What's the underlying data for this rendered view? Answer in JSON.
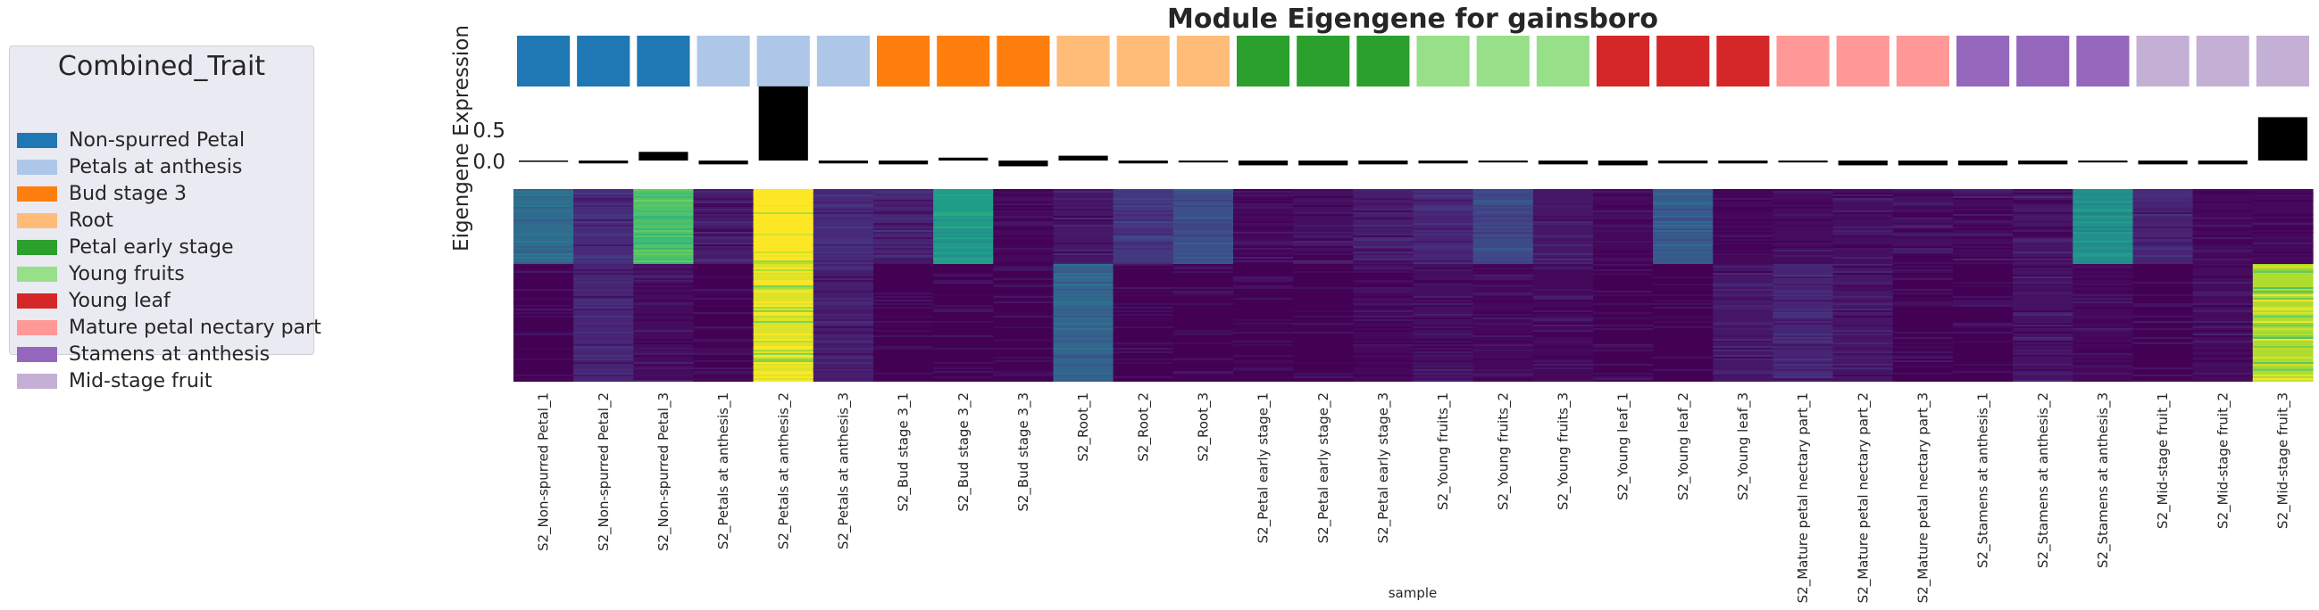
{
  "chart_data": {
    "type": "heatmap",
    "title": "Module Eigengene for gainsboro",
    "xlabel": "sample",
    "ylabel": "Eigengene Expression",
    "yticks": [
      "0.5",
      "0.0"
    ],
    "ylim": [
      -0.1,
      0.8
    ],
    "legend": {
      "title": "Combined_Trait",
      "placement": "left",
      "entries": [
        {
          "label": "Non-spurred Petal",
          "color": "#1f77b4"
        },
        {
          "label": "Petals at anthesis",
          "color": "#aec7e8"
        },
        {
          "label": "Bud stage 3",
          "color": "#ff7f0e"
        },
        {
          "label": "Root",
          "color": "#ffbb78"
        },
        {
          "label": "Petal early stage",
          "color": "#2ca02c"
        },
        {
          "label": "Young fruits",
          "color": "#98df8a"
        },
        {
          "label": "Young leaf",
          "color": "#d62728"
        },
        {
          "label": "Mature petal nectary part",
          "color": "#ff9896"
        },
        {
          "label": "Stamens at anthesis",
          "color": "#9467bd"
        },
        {
          "label": "Mid-stage fruit",
          "color": "#c5b0d5"
        }
      ]
    },
    "samples": [
      "S2_Non-spurred Petal_1",
      "S2_Non-spurred Petal_2",
      "S2_Non-spurred Petal_3",
      "S2_Petals at anthesis_1",
      "S2_Petals at anthesis_2",
      "S2_Petals at anthesis_3",
      "S2_Bud stage 3_1",
      "S2_Bud stage 3_2",
      "S2_Bud stage 3_3",
      "S2_Root_1",
      "S2_Root_2",
      "S2_Root_3",
      "S2_Petal early stage_1",
      "S2_Petal early stage_2",
      "S2_Petal early stage_3",
      "S2_Young fruits_1",
      "S2_Young fruits_2",
      "S2_Young fruits_3",
      "S2_Young leaf_1",
      "S2_Young leaf_2",
      "S2_Young leaf_3",
      "S2_Mature petal nectary part_1",
      "S2_Mature petal nectary part_2",
      "S2_Mature petal nectary part_3",
      "S2_Stamens at anthesis_1",
      "S2_Stamens at anthesis_2",
      "S2_Stamens at anthesis_3",
      "S2_Mid-stage fruit_1",
      "S2_Mid-stage fruit_2",
      "S2_Mid-stage fruit_3"
    ],
    "trait_index": [
      0,
      0,
      0,
      1,
      1,
      1,
      2,
      2,
      2,
      3,
      3,
      3,
      4,
      4,
      4,
      5,
      5,
      5,
      6,
      6,
      6,
      7,
      7,
      7,
      8,
      8,
      8,
      9,
      9,
      9
    ],
    "eigengene": [
      -0.01,
      -0.03,
      0.09,
      -0.04,
      0.77,
      -0.03,
      -0.04,
      0.03,
      -0.06,
      0.05,
      -0.03,
      -0.02,
      -0.05,
      -0.05,
      -0.04,
      -0.03,
      -0.02,
      -0.04,
      -0.05,
      -0.03,
      -0.03,
      -0.02,
      -0.05,
      -0.05,
      -0.05,
      -0.04,
      -0.02,
      -0.04,
      -0.04,
      0.45
    ],
    "heatmap_upper": [
      0.35,
      0.12,
      0.72,
      0.07,
      1.0,
      0.12,
      0.1,
      0.55,
      0.02,
      0.06,
      0.16,
      0.24,
      0.02,
      0.04,
      0.08,
      0.1,
      0.22,
      0.06,
      0.02,
      0.28,
      0.02,
      0.03,
      0.04,
      0.04,
      0.03,
      0.06,
      0.5,
      0.1,
      0.02,
      0.02
    ],
    "heatmap_lower": [
      0.0,
      0.1,
      0.03,
      0.0,
      0.95,
      0.08,
      0.0,
      0.0,
      0.0,
      0.32,
      0.0,
      0.0,
      0.0,
      0.0,
      0.02,
      0.04,
      0.02,
      0.02,
      0.0,
      0.0,
      0.06,
      0.1,
      0.06,
      0.0,
      0.0,
      0.05,
      0.02,
      0.0,
      0.03,
      0.88
    ]
  }
}
